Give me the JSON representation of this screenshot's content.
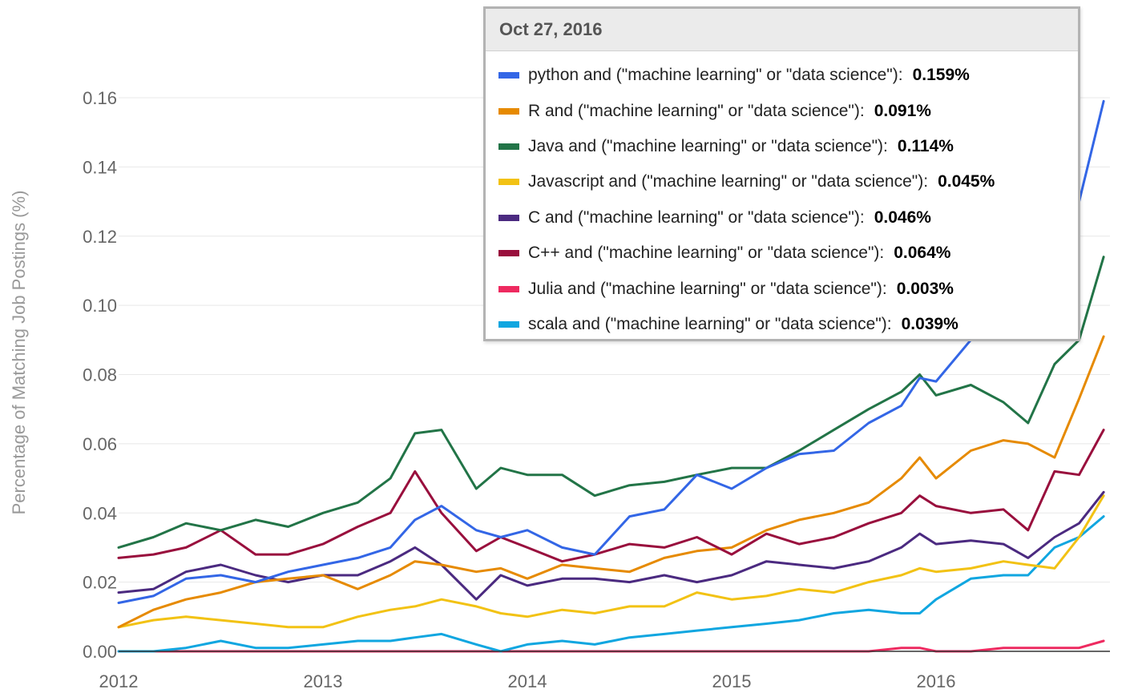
{
  "chart_data": {
    "type": "line",
    "ylabel": "Percentage of Matching Job Postings (%)",
    "xlabel": "",
    "x_ticks": [
      "2012",
      "2013",
      "2014",
      "2015",
      "2016"
    ],
    "y_ticks": [
      "0.00",
      "0.02",
      "0.04",
      "0.06",
      "0.08",
      "0.10",
      "0.12",
      "0.14",
      "0.16"
    ],
    "xlim": [
      2012.0,
      2016.82
    ],
    "ylim": [
      0,
      0.17
    ],
    "grid": "horizontal",
    "x": [
      2012.0,
      2012.17,
      2012.33,
      2012.5,
      2012.67,
      2012.83,
      2013.0,
      2013.17,
      2013.33,
      2013.45,
      2013.58,
      2013.75,
      2013.87,
      2014.0,
      2014.17,
      2014.33,
      2014.5,
      2014.67,
      2014.83,
      2015.0,
      2015.17,
      2015.33,
      2015.5,
      2015.67,
      2015.83,
      2015.92,
      2016.0,
      2016.17,
      2016.33,
      2016.45,
      2016.58,
      2016.7,
      2016.82
    ],
    "series": [
      {
        "name": "python and (\"machine learning\" or \"data science\")",
        "color": "#3366e6",
        "values": [
          0.014,
          0.016,
          0.021,
          0.022,
          0.02,
          0.023,
          0.025,
          0.027,
          0.03,
          0.038,
          0.042,
          0.035,
          0.033,
          0.035,
          0.03,
          0.028,
          0.039,
          0.041,
          0.051,
          0.047,
          0.053,
          0.057,
          0.058,
          0.066,
          0.071,
          0.079,
          0.078,
          0.09,
          0.105,
          0.095,
          0.108,
          0.13,
          0.159
        ]
      },
      {
        "name": "R and (\"machine learning\" or \"data science\")",
        "color": "#e68a00",
        "values": [
          0.007,
          0.012,
          0.015,
          0.017,
          0.02,
          0.021,
          0.022,
          0.018,
          0.022,
          0.026,
          0.025,
          0.023,
          0.024,
          0.021,
          0.025,
          0.024,
          0.023,
          0.027,
          0.029,
          0.03,
          0.035,
          0.038,
          0.04,
          0.043,
          0.05,
          0.056,
          0.05,
          0.058,
          0.061,
          0.06,
          0.056,
          0.073,
          0.091
        ]
      },
      {
        "name": "Java and (\"machine learning\" or \"data science\")",
        "color": "#227447",
        "values": [
          0.03,
          0.033,
          0.037,
          0.035,
          0.038,
          0.036,
          0.04,
          0.043,
          0.05,
          0.063,
          0.064,
          0.047,
          0.053,
          0.051,
          0.051,
          0.045,
          0.048,
          0.049,
          0.051,
          0.053,
          0.053,
          0.058,
          0.064,
          0.07,
          0.075,
          0.08,
          0.074,
          0.077,
          0.072,
          0.066,
          0.083,
          0.09,
          0.114
        ]
      },
      {
        "name": "Javascript and (\"machine learning\" or \"data science\")",
        "color": "#f2c214",
        "values": [
          0.007,
          0.009,
          0.01,
          0.009,
          0.008,
          0.007,
          0.007,
          0.01,
          0.012,
          0.013,
          0.015,
          0.013,
          0.011,
          0.01,
          0.012,
          0.011,
          0.013,
          0.013,
          0.017,
          0.015,
          0.016,
          0.018,
          0.017,
          0.02,
          0.022,
          0.024,
          0.023,
          0.024,
          0.026,
          0.025,
          0.024,
          0.033,
          0.045
        ]
      },
      {
        "name": "C and (\"machine learning\" or \"data science\")",
        "color": "#4b2a80",
        "values": [
          0.017,
          0.018,
          0.023,
          0.025,
          0.022,
          0.02,
          0.022,
          0.022,
          0.026,
          0.03,
          0.025,
          0.015,
          0.022,
          0.019,
          0.021,
          0.021,
          0.02,
          0.022,
          0.02,
          0.022,
          0.026,
          0.025,
          0.024,
          0.026,
          0.03,
          0.034,
          0.031,
          0.032,
          0.031,
          0.027,
          0.033,
          0.037,
          0.046
        ]
      },
      {
        "name": "C++ and (\"machine learning\" or \"data science\")",
        "color": "#990f3d",
        "values": [
          0.027,
          0.028,
          0.03,
          0.035,
          0.028,
          0.028,
          0.031,
          0.036,
          0.04,
          0.052,
          0.04,
          0.029,
          0.033,
          0.03,
          0.026,
          0.028,
          0.031,
          0.03,
          0.033,
          0.028,
          0.034,
          0.031,
          0.033,
          0.037,
          0.04,
          0.045,
          0.042,
          0.04,
          0.041,
          0.035,
          0.052,
          0.051,
          0.064
        ]
      },
      {
        "name": "Julia and (\"machine learning\" or \"data science\")",
        "color": "#ee2a60",
        "values": [
          0.0,
          0.0,
          0.0,
          0.0,
          0.0,
          0.0,
          0.0,
          0.0,
          0.0,
          0.0,
          0.0,
          0.0,
          0.0,
          0.0,
          0.0,
          0.0,
          0.0,
          0.0,
          0.0,
          0.0,
          0.0,
          0.0,
          0.0,
          0.0,
          0.001,
          0.001,
          0.0,
          0.0,
          0.001,
          0.001,
          0.001,
          0.001,
          0.003
        ]
      },
      {
        "name": "scala and (\"machine learning\" or \"data science\")",
        "color": "#10a6e0",
        "values": [
          0.0,
          0.0,
          0.001,
          0.003,
          0.001,
          0.001,
          0.002,
          0.003,
          0.003,
          0.004,
          0.005,
          0.002,
          0.0,
          0.002,
          0.003,
          0.002,
          0.004,
          0.005,
          0.006,
          0.007,
          0.008,
          0.009,
          0.011,
          0.012,
          0.011,
          0.011,
          0.015,
          0.021,
          0.022,
          0.022,
          0.03,
          0.033,
          0.039
        ]
      }
    ]
  },
  "tooltip": {
    "date": "Oct 27, 2016",
    "items": [
      {
        "label": "python and (\"machine learning\" or \"data science\"):",
        "value": "0.159%",
        "color": "#3366e6"
      },
      {
        "label": "R and (\"machine learning\" or \"data science\"):",
        "value": "0.091%",
        "color": "#e68a00"
      },
      {
        "label": "Java and (\"machine learning\" or \"data science\"):",
        "value": "0.114%",
        "color": "#227447"
      },
      {
        "label": "Javascript and (\"machine learning\" or \"data science\"):",
        "value": "0.045%",
        "color": "#f2c214"
      },
      {
        "label": "C and (\"machine learning\" or \"data science\"):",
        "value": "0.046%",
        "color": "#4b2a80"
      },
      {
        "label": "C++ and (\"machine learning\" or \"data science\"):",
        "value": "0.064%",
        "color": "#990f3d"
      },
      {
        "label": "Julia and (\"machine learning\" or \"data science\"):",
        "value": "0.003%",
        "color": "#ee2a60"
      },
      {
        "label": "scala and (\"machine learning\" or \"data science\"):",
        "value": "0.039%",
        "color": "#10a6e0"
      }
    ]
  }
}
